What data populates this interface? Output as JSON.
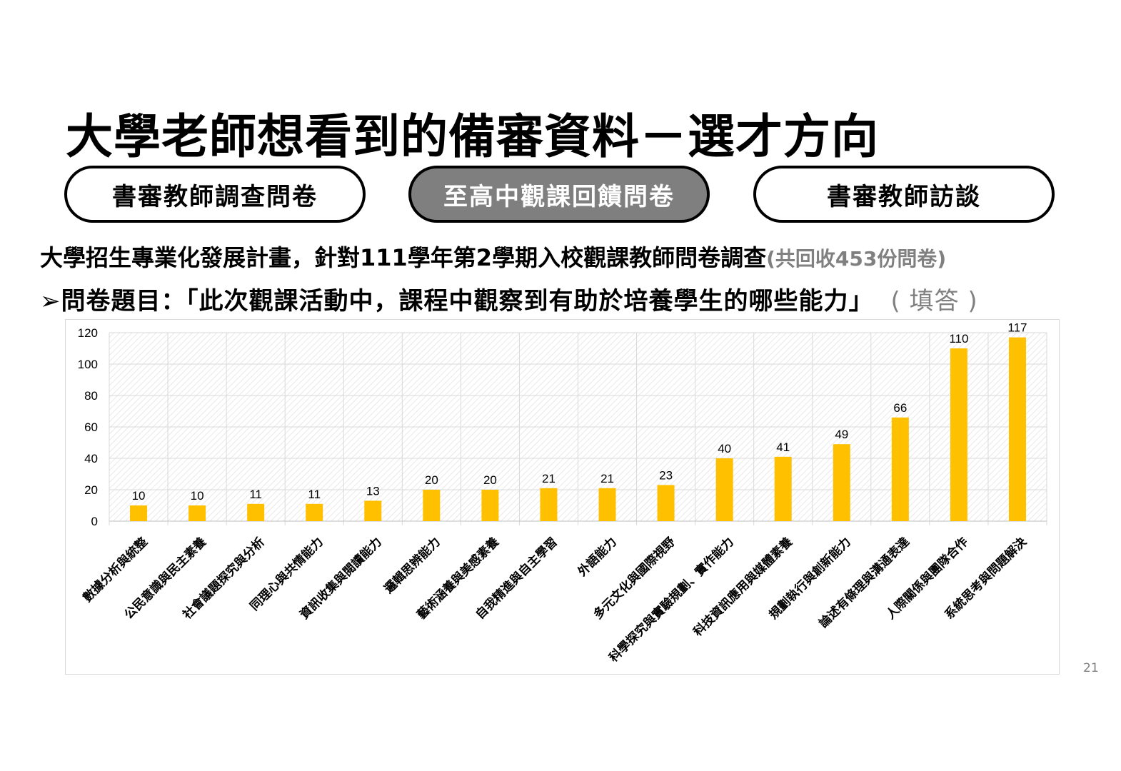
{
  "title": "大學老師想看到的備審資料－選才方向",
  "tabs": [
    {
      "label": "書審教師調查問卷"
    },
    {
      "label": "至高中觀課回饋問卷"
    },
    {
      "label": "書審教師訪談"
    }
  ],
  "subtitle": {
    "main": "大學招生專業化發展計畫，針對111學年第2學期入校觀課教師問卷調查",
    "note": "(共回收453份問卷)"
  },
  "question": {
    "bullet": "➢",
    "text": "問卷題目：「此次觀課活動中，課程中觀察到有助於培養學生的哪些能力」",
    "note": "( 填答 )"
  },
  "page_number": "21",
  "colors": {
    "bar": "#FFC000",
    "active_tab": "#7F7F7F"
  },
  "chart_data": {
    "type": "bar",
    "title": "",
    "xlabel": "",
    "ylabel": "",
    "ylim": [
      0,
      120
    ],
    "yticks": [
      0,
      20,
      40,
      60,
      80,
      100,
      120
    ],
    "grid": true,
    "categories": [
      "數據分析與統整",
      "公民意識與民主素養",
      "社會議題探究與分析",
      "同理心與共情能力",
      "資訊收集與閱讀能力",
      "邏輯思辨能力",
      "藝術涵養與美感素養",
      "自我精進與自主學習",
      "外語能力",
      "多元文化與國際視野",
      "科學探究與實驗規劃、實作能力",
      "科技資訊應用與媒體素養",
      "規劃執行與創新能力",
      "論述有條理與溝通表達",
      "人際關係與團隊合作",
      "系統思考與問題解決"
    ],
    "values": [
      10,
      10,
      11,
      11,
      13,
      20,
      20,
      21,
      21,
      23,
      40,
      41,
      49,
      66,
      110,
      117
    ]
  }
}
